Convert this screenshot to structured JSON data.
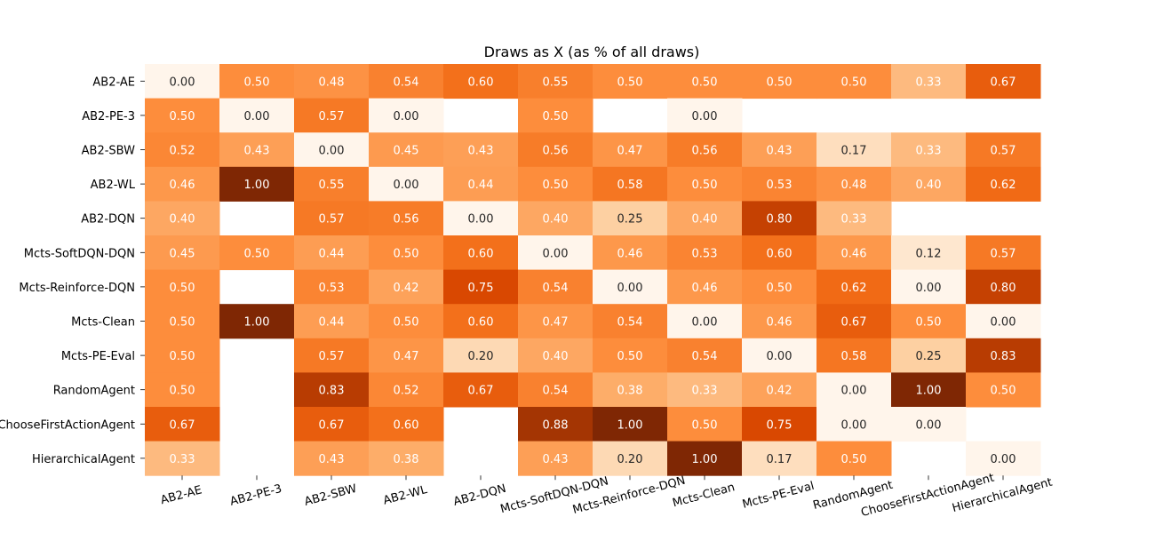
{
  "chart_data": {
    "type": "heatmap",
    "title": "Draws as X (as % of all draws)",
    "xlabel": "",
    "ylabel": "",
    "colormap": "Oranges",
    "value_range": [
      0,
      1
    ],
    "missing_cells_blank": true,
    "rows": [
      "AB2-AE",
      "AB2-PE-3",
      "AB2-SBW",
      "AB2-WL",
      "AB2-DQN",
      "Mcts-SoftDQN-DQN",
      "Mcts-Reinforce-DQN",
      "Mcts-Clean",
      "Mcts-PE-Eval",
      "RandomAgent",
      "ChooseFirstActionAgent",
      "HierarchicalAgent"
    ],
    "columns": [
      "AB2-AE",
      "AB2-PE-3",
      "AB2-SBW",
      "AB2-WL",
      "AB2-DQN",
      "Mcts-SoftDQN-DQN",
      "Mcts-Reinforce-DQN",
      "Mcts-Clean",
      "Mcts-PE-Eval",
      "RandomAgent",
      "ChooseFirstActionAgent",
      "HierarchicalAgent"
    ],
    "values": [
      [
        0.0,
        0.5,
        0.48,
        0.54,
        0.6,
        0.55,
        0.5,
        0.5,
        0.5,
        0.5,
        0.33,
        0.67
      ],
      [
        0.5,
        0.0,
        0.57,
        0.0,
        null,
        0.5,
        null,
        0.0,
        null,
        null,
        null,
        null
      ],
      [
        0.52,
        0.43,
        0.0,
        0.45,
        0.43,
        0.56,
        0.47,
        0.56,
        0.43,
        0.17,
        0.33,
        0.57
      ],
      [
        0.46,
        1.0,
        0.55,
        0.0,
        0.44,
        0.5,
        0.58,
        0.5,
        0.53,
        0.48,
        0.4,
        0.62
      ],
      [
        0.4,
        null,
        0.57,
        0.56,
        0.0,
        0.4,
        0.25,
        0.4,
        0.8,
        0.33,
        null,
        null
      ],
      [
        0.45,
        0.5,
        0.44,
        0.5,
        0.6,
        0.0,
        0.46,
        0.53,
        0.6,
        0.46,
        0.12,
        0.57
      ],
      [
        0.5,
        null,
        0.53,
        0.42,
        0.75,
        0.54,
        0.0,
        0.46,
        0.5,
        0.62,
        0.0,
        0.8
      ],
      [
        0.5,
        1.0,
        0.44,
        0.5,
        0.6,
        0.47,
        0.54,
        0.0,
        0.46,
        0.67,
        0.5,
        0.0
      ],
      [
        0.5,
        null,
        0.57,
        0.47,
        0.2,
        0.4,
        0.5,
        0.54,
        0.0,
        0.58,
        0.25,
        0.83
      ],
      [
        0.5,
        null,
        0.83,
        0.52,
        0.67,
        0.54,
        0.38,
        0.33,
        0.42,
        0.0,
        1.0,
        0.5
      ],
      [
        0.67,
        null,
        0.67,
        0.6,
        null,
        0.88,
        1.0,
        0.5,
        0.75,
        0.0,
        0.0,
        null
      ],
      [
        0.33,
        null,
        0.43,
        0.38,
        null,
        0.43,
        0.2,
        1.0,
        0.17,
        0.5,
        null,
        0.0
      ]
    ],
    "value_format": "0.00"
  }
}
